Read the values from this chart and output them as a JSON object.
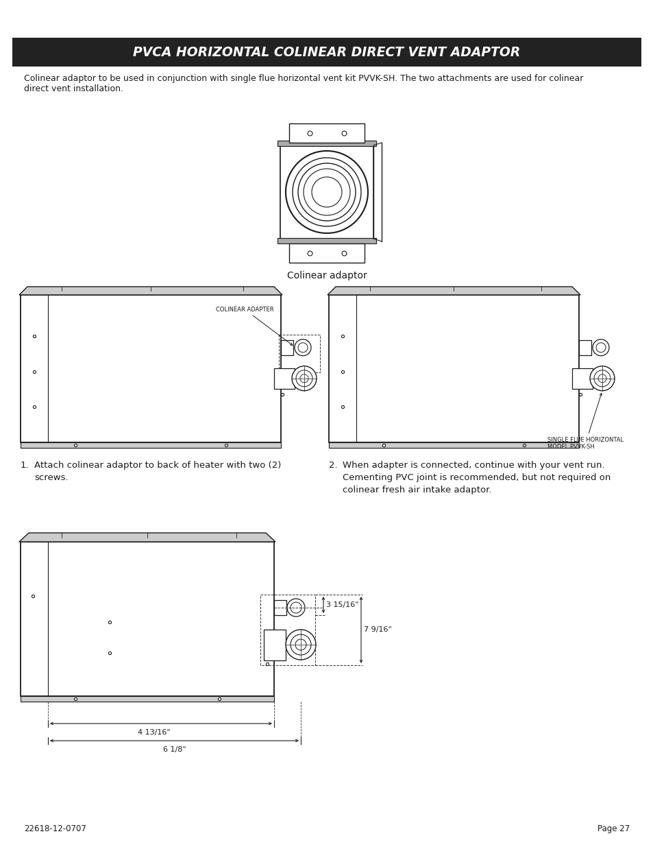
{
  "title": "PVCA HORIZONTAL COLINEAR DIRECT VENT ADAPTOR",
  "title_bg": "#222222",
  "title_color": "#ffffff",
  "body_text_line1": "Colinear adaptor to be used in conjunction with single flue horizontal vent kit PVVK-SH. The two attachments are used for colinear",
  "body_text_line2": "direct vent installation.",
  "footer_left": "22618-12-0707",
  "footer_right": "Page 27",
  "colinear_label": "Colinear adaptor",
  "colinear_adapter_label": "COLINEAR ADAPTER",
  "single_flue_label": "SINGLE FLUE HORIZONTAL\nMODEL PVVK-SH",
  "step1_num": "1.",
  "step1_text": "Attach colinear adaptor to back of heater with two (2)\nscrews.",
  "step2_num": "2.",
  "step2_text": "When adapter is connected, continue with your vent run.\nCementing PVC joint is recommended, but not required on\ncolinear fresh air intake adaptor.",
  "dim1": "3 15/16\"",
  "dim2": "7 9/16\"",
  "dim3": "4 13/16\"",
  "dim4": "6 1/8\"",
  "bg_color": "#ffffff",
  "line_color": "#1a1a1a",
  "gray_light": "#bbbbbb",
  "gray_med": "#888888",
  "dash_color": "#333333"
}
